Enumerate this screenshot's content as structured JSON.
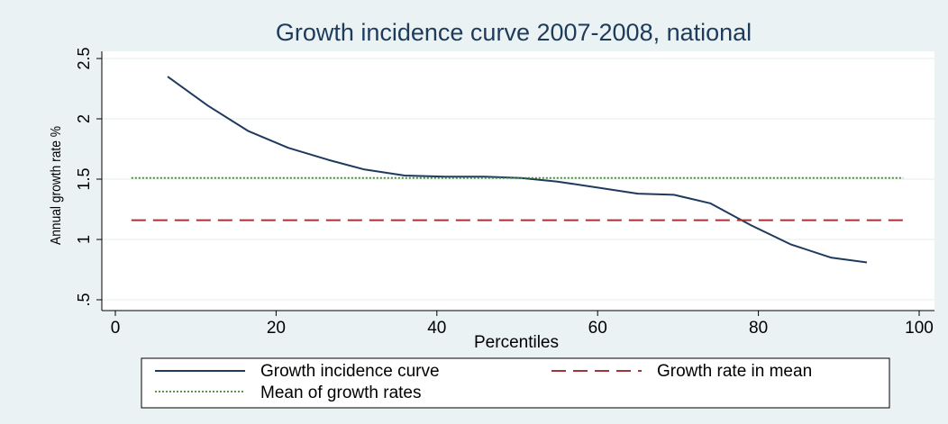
{
  "chart_data": {
    "type": "line",
    "title": "Growth incidence curve 2007-2008, national",
    "xlabel": "Percentiles",
    "ylabel": "Annual growth rate %",
    "xlim": [
      0,
      100
    ],
    "ylim": [
      0.5,
      2.5
    ],
    "x_ticks": [
      0,
      20,
      40,
      60,
      80,
      100
    ],
    "x_tick_labels": [
      "0",
      "20",
      "40",
      "60",
      "80",
      "100"
    ],
    "y_ticks": [
      0.5,
      1,
      1.5,
      2,
      2.5
    ],
    "y_tick_labels": [
      ".5",
      "1",
      "1.5",
      "2",
      "2.5"
    ],
    "grid": "horizontal",
    "legend_position": "bottom",
    "series": [
      {
        "name": "Growth incidence curve",
        "style": "solid",
        "color": "#1f3a5f",
        "x": [
          6.5,
          11.5,
          16.5,
          21.5,
          26.5,
          31,
          36,
          41,
          46,
          50.5,
          55,
          60,
          65,
          69.5,
          74,
          79,
          84,
          89,
          93.5
        ],
        "values": [
          2.35,
          2.11,
          1.9,
          1.76,
          1.66,
          1.58,
          1.53,
          1.52,
          1.52,
          1.51,
          1.48,
          1.43,
          1.38,
          1.37,
          1.3,
          1.12,
          0.96,
          0.85,
          0.81
        ]
      },
      {
        "name": "Growth rate in mean",
        "style": "dashed",
        "color": "#a8323a",
        "x": [
          2,
          98
        ],
        "values": [
          1.16,
          1.16
        ]
      },
      {
        "name": "Mean of growth rates",
        "style": "dotted",
        "color": "#3e8a2a",
        "x": [
          2,
          98
        ],
        "values": [
          1.51,
          1.51
        ]
      }
    ]
  }
}
